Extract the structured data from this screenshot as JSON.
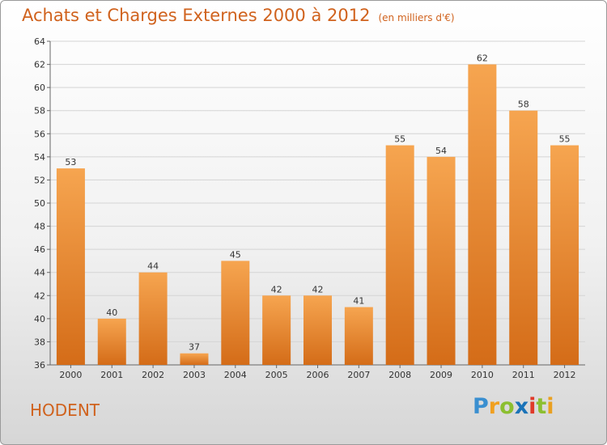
{
  "chart_data": {
    "type": "bar",
    "title": "Achats et Charges Externes 2000 à 2012",
    "subtitle": "(en milliers d'€)",
    "categories": [
      "2000",
      "2001",
      "2002",
      "2003",
      "2004",
      "2005",
      "2006",
      "2007",
      "2008",
      "2009",
      "2010",
      "2011",
      "2012"
    ],
    "values": [
      53,
      40,
      44,
      37,
      45,
      42,
      42,
      41,
      55,
      54,
      62,
      58,
      55
    ],
    "ylim": [
      36,
      64
    ],
    "yticks": [
      36,
      38,
      40,
      42,
      44,
      46,
      48,
      50,
      52,
      54,
      56,
      58,
      60,
      62,
      64
    ],
    "grid": true,
    "bar_color_top": "#f6a550",
    "bar_color_bottom": "#d46c18"
  },
  "footer": {
    "town": "HODENT",
    "logo_letters": [
      {
        "ch": "P",
        "color": "#3a8fd0"
      },
      {
        "ch": "r",
        "color": "#f0a020"
      },
      {
        "ch": "o",
        "color": "#8cbf30"
      },
      {
        "ch": "x",
        "color": "#1a73b8"
      },
      {
        "ch": "i",
        "color": "#e03a2a"
      },
      {
        "ch": "t",
        "color": "#8cbf30"
      },
      {
        "ch": "i",
        "color": "#e9a020"
      }
    ]
  }
}
